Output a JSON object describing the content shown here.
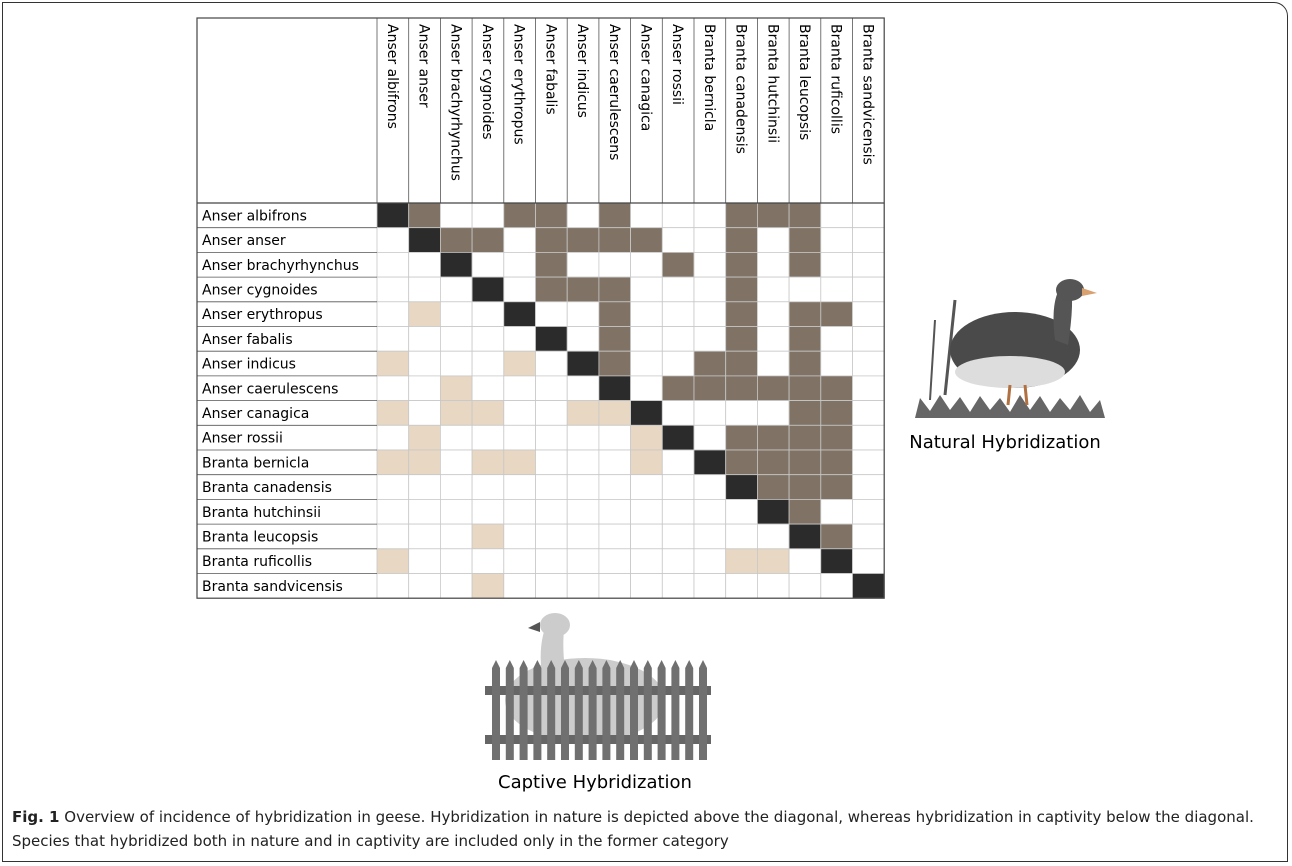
{
  "figure": {
    "species": [
      "Anser albifrons",
      "Anser anser",
      "Anser brachyrhynchus",
      "Anser cygnoides",
      "Anser erythropus",
      "Anser fabalis",
      "Anser indicus",
      "Anser caerulescens",
      "Anser canagica",
      "Anser rossii",
      "Branta bernicla",
      "Branta canadensis",
      "Branta hutchinsii",
      "Branta leucopsis",
      "Branta ruficollis",
      "Branta sandvicensis"
    ],
    "natural_label": "Natural Hybridization",
    "captive_label": "Captive Hybridization"
  },
  "caption": {
    "label": "Fig. 1",
    "text": "Overview of incidence of hybridization in geese. Hybridization in nature is depicted above the diagonal, whereas hybridization in captivity below the diagonal. Species that hybridized both in nature and in captivity are included only in the former category"
  }
}
